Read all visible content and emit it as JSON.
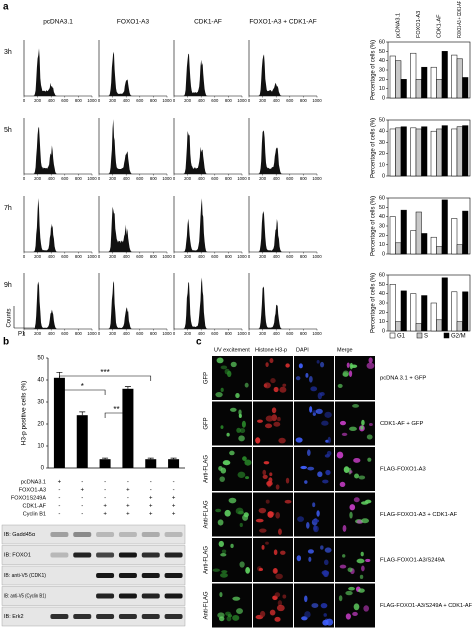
{
  "panel_a": {
    "label": "a",
    "columns": [
      "pcDNA3.1",
      "FOXO1-A3",
      "CDK1-AF",
      "FOXO1-A3 + CDK1-AF"
    ],
    "times": [
      "3h",
      "5h",
      "7h",
      "9h"
    ],
    "hist_xticks": [
      0,
      200,
      400,
      600,
      800,
      1000
    ],
    "hist_ylabel": "Counts",
    "hist_gate": "P1",
    "ylabel": "Percentage of cells (%)",
    "series": [
      {
        "name": "G1",
        "color": "#ffffff"
      },
      {
        "name": "S",
        "color": "#c8c8c8"
      },
      {
        "name": "G2/M",
        "color": "#000000"
      }
    ],
    "charts": [
      {
        "type": "bar",
        "ylim": [
          0,
          60
        ],
        "yticks": [
          0,
          10,
          20,
          30,
          40,
          50,
          60
        ],
        "values": [
          [
            45,
            48,
            33,
            46
          ],
          [
            40,
            20,
            20,
            42
          ],
          [
            20,
            33,
            50,
            22
          ]
        ]
      },
      {
        "type": "bar",
        "ylim": [
          0,
          50
        ],
        "yticks": [
          0,
          10,
          20,
          30,
          40,
          50
        ],
        "values": [
          [
            42,
            43,
            40,
            42
          ],
          [
            43,
            42,
            42,
            44
          ],
          [
            44,
            44,
            45,
            45
          ]
        ]
      },
      {
        "type": "bar",
        "ylim": [
          0,
          60
        ],
        "yticks": [
          0,
          10,
          20,
          30,
          40,
          50,
          60
        ],
        "values": [
          [
            40,
            25,
            18,
            38
          ],
          [
            12,
            45,
            8,
            10
          ],
          [
            47,
            22,
            58,
            46
          ]
        ]
      },
      {
        "type": "bar",
        "ylim": [
          0,
          60
        ],
        "yticks": [
          0,
          10,
          20,
          30,
          40,
          50,
          60
        ],
        "values": [
          [
            50,
            40,
            30,
            42
          ],
          [
            10,
            8,
            12,
            10
          ],
          [
            43,
            38,
            57,
            42
          ]
        ]
      }
    ]
  },
  "panel_b": {
    "label": "b",
    "type": "bar",
    "ylabel": "H3-p positive cells (%)",
    "ylim": [
      0,
      50
    ],
    "yticks": [
      0,
      10,
      20,
      30,
      40,
      50
    ],
    "values": [
      41,
      24,
      4,
      36,
      4,
      4
    ],
    "errors": [
      2.5,
      1.5,
      0.5,
      1,
      0.5,
      0.5
    ],
    "color": "#000000",
    "significance": [
      "*",
      "***",
      "**"
    ],
    "treatments": [
      {
        "name": "pcDNA3.1",
        "signs": [
          "+",
          "-",
          "-",
          "-",
          "-",
          "-"
        ]
      },
      {
        "name": "FOXO1-A3",
        "signs": [
          "-",
          "+",
          "-",
          "+",
          "-",
          "-"
        ]
      },
      {
        "name": "FOXO1S249A",
        "signs": [
          "-",
          "-",
          "-",
          "-",
          "+",
          "+"
        ]
      },
      {
        "name": "CDK1-AF",
        "signs": [
          "-",
          "-",
          "+",
          "+",
          "+",
          "+"
        ]
      },
      {
        "name": "Cyclin B1",
        "signs": [
          "-",
          "-",
          "+",
          "+",
          "+",
          "+"
        ]
      }
    ],
    "blots": [
      "IB: Gadd45α",
      "IB: FOXO1",
      "IB: anti-V5 (CDK1)",
      "IB: anti-V5 (Cyclin B1)",
      "IB: Erk2"
    ]
  },
  "panel_c": {
    "label": "c",
    "columns": [
      "UV excitement",
      "Histone H3-p",
      "DAPI",
      "Merge"
    ],
    "rows": [
      {
        "stain": "GFP",
        "condition": "pcDNA 3.1 + GFP"
      },
      {
        "stain": "GFP",
        "condition": "CDK1-AF + GFP"
      },
      {
        "stain": "Anti-FLAG",
        "condition": "FLAG-FOXO1-A3"
      },
      {
        "stain": "Anti-FLAG",
        "condition": "FLAG-FOXO1-A3 + CDK1-AF"
      },
      {
        "stain": "Anti-FLAG",
        "condition": "FLAG-FOXO1-A3/S249A"
      },
      {
        "stain": "Anti-FLAG",
        "condition": "FLAG-FOXO1-A3/S249A + CDK1-AF"
      }
    ]
  }
}
